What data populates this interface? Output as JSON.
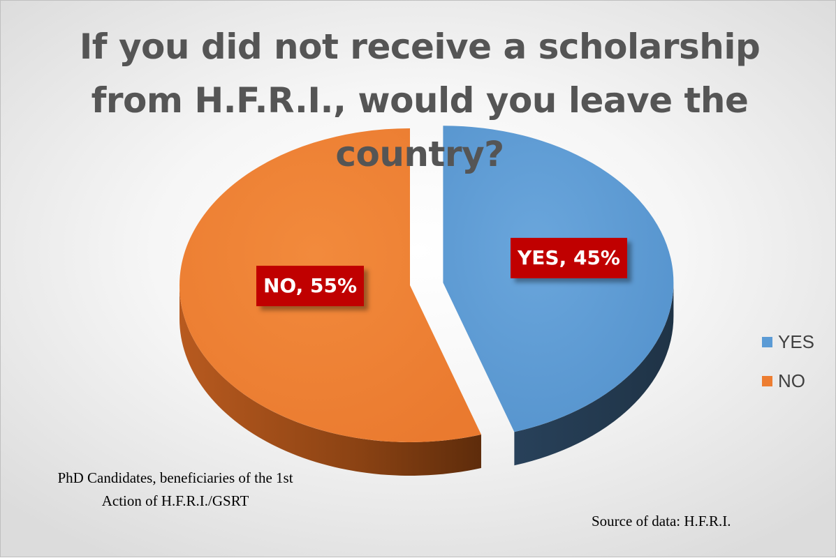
{
  "chart_data": {
    "type": "pie",
    "title": "If you did not receive a scholarship from H.F.R.I., would you leave the country?",
    "slices": [
      {
        "name": "YES",
        "value": 45,
        "color": "#5b9bd5",
        "side_color": "#2e4a66",
        "data_label": "YES, 45%",
        "exploded": true
      },
      {
        "name": "NO",
        "value": 55,
        "color": "#ed7d31",
        "side_color": "#8f4414",
        "data_label": "NO, 55%",
        "exploded": false
      }
    ],
    "legend": {
      "position": "right",
      "entries": [
        "YES",
        "NO"
      ]
    },
    "label_color": "#c00000"
  },
  "note": {
    "line1": "PhD Candidates, beneficiaries of the 1st",
    "line2": "Action of H.F.R.I./GSRT"
  },
  "source": "Source of data: H.F.R.I."
}
